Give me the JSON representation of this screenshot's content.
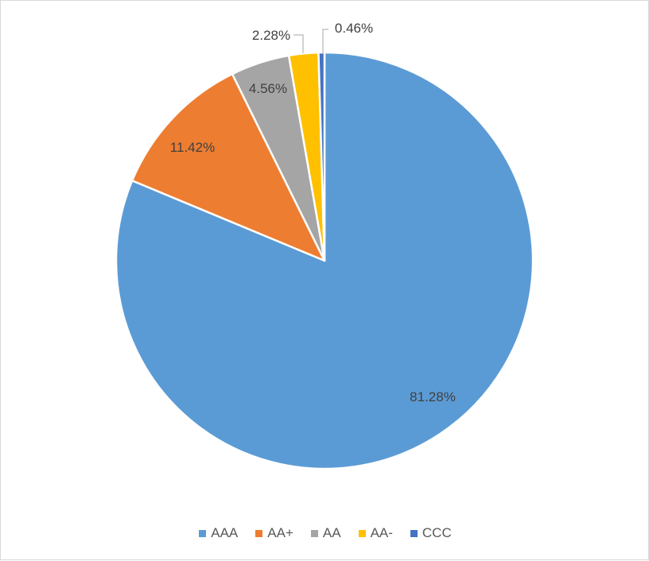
{
  "chart_data": {
    "type": "pie",
    "title": "",
    "categories": [
      "AAA",
      "AA+",
      "AA",
      "AA-",
      "CCC"
    ],
    "values": [
      81.28,
      11.42,
      4.56,
      2.28,
      0.46
    ],
    "value_labels": [
      "81.28%",
      "11.42%",
      "4.56%",
      "2.28%",
      "0.46%"
    ],
    "colors": [
      "#5B9BD5",
      "#ED7D31",
      "#A5A5A5",
      "#FFC000",
      "#4472C4"
    ],
    "start_angle": "12 o'clock",
    "direction": "clockwise",
    "legend_position": "bottom"
  }
}
